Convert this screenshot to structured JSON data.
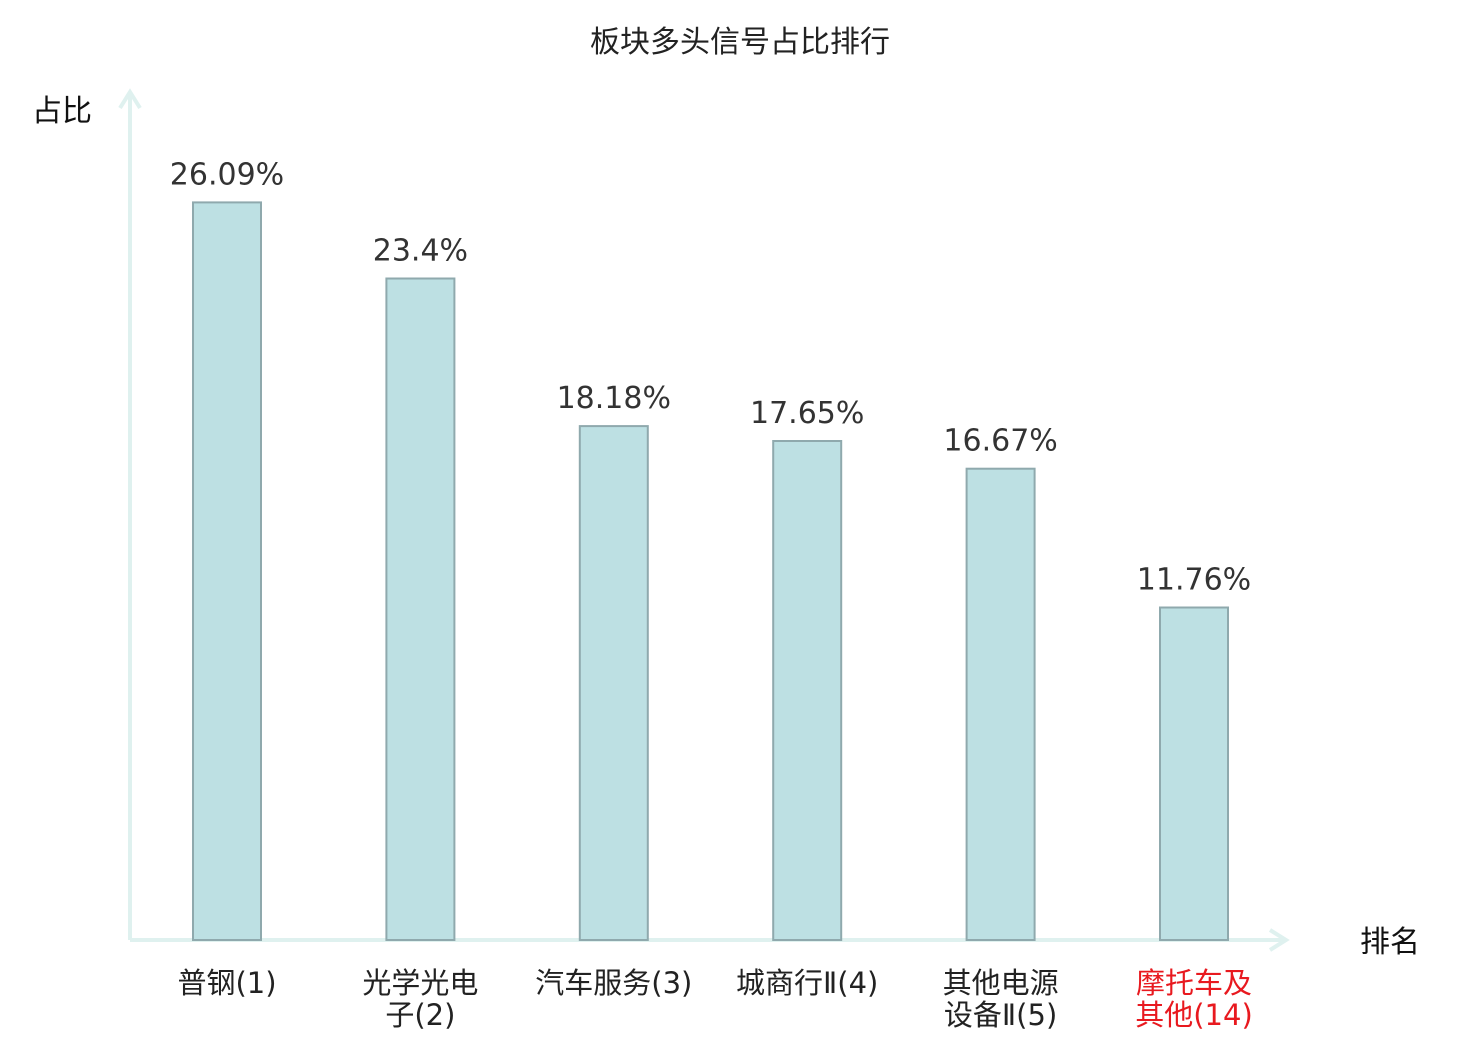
{
  "chart_data": {
    "type": "bar",
    "title": "板块多头信号占比排行",
    "ylabel": "占比",
    "xlabel": "排名",
    "categories": [
      {
        "lines": [
          "普钢(1)"
        ],
        "highlight": false
      },
      {
        "lines": [
          "光学光电",
          "子(2)"
        ],
        "highlight": false
      },
      {
        "lines": [
          "汽车服务(3)"
        ],
        "highlight": false
      },
      {
        "lines": [
          "城商行Ⅱ(4)"
        ],
        "highlight": false
      },
      {
        "lines": [
          "其他电源",
          "设备Ⅱ(5)"
        ],
        "highlight": false
      },
      {
        "lines": [
          "摩托车及",
          "其他(14)"
        ],
        "highlight": true
      }
    ],
    "values": [
      26.09,
      23.4,
      18.18,
      17.65,
      16.67,
      11.76
    ],
    "value_labels": [
      "26.09%",
      "23.4%",
      "18.18%",
      "17.65%",
      "16.67%",
      "11.76%"
    ],
    "ylim": [
      0,
      30
    ],
    "grid": false,
    "colors": {
      "bar_fill": "#bde0e3",
      "bar_stroke": "#8fa9ad",
      "axis": "#dff1ef",
      "label_normal": "#222222",
      "label_highlight": "#e8191f"
    }
  }
}
